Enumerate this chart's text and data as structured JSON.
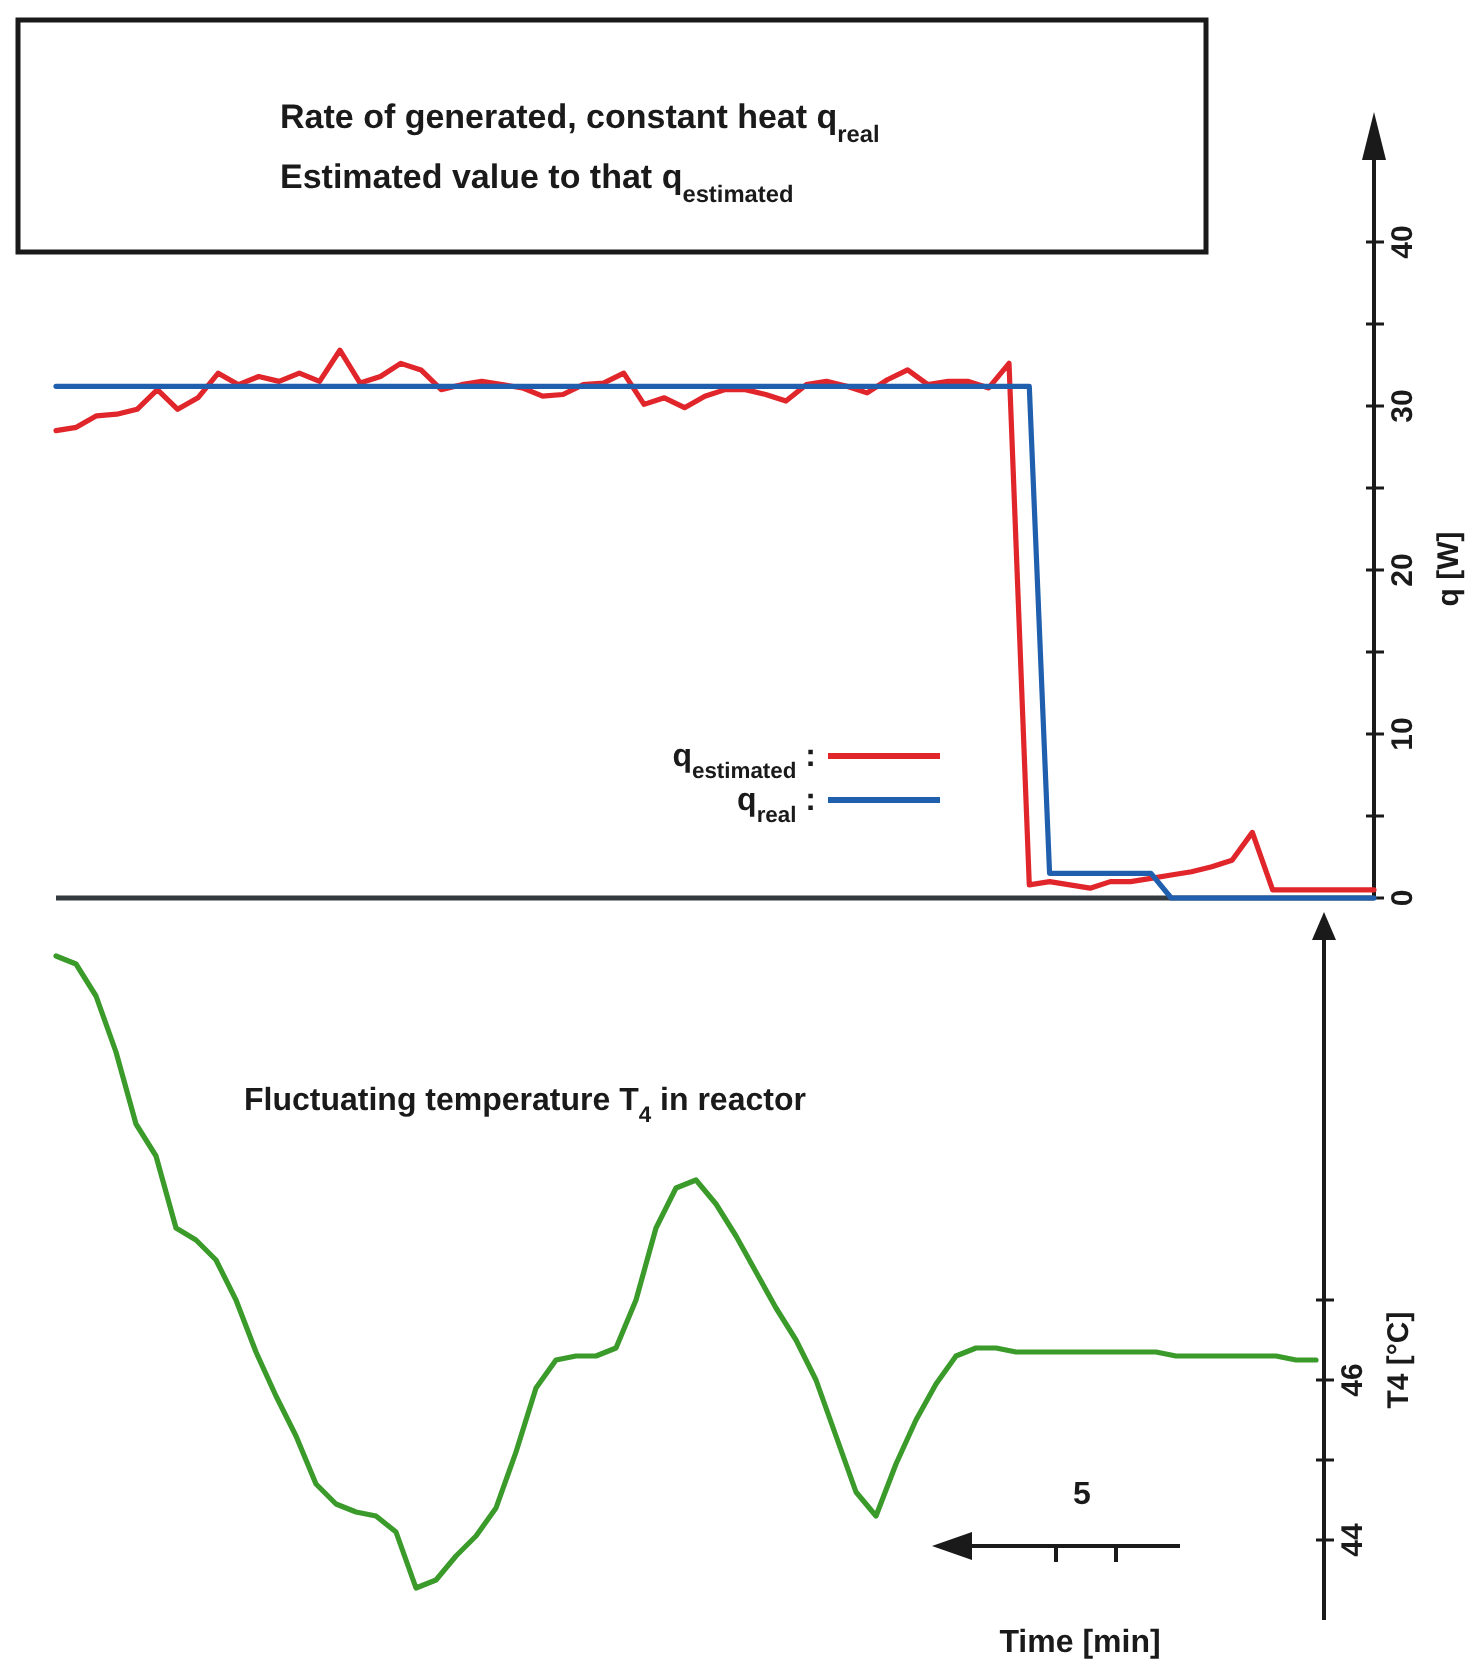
{
  "chart_data": [
    {
      "type": "line",
      "annotations": [
        "Rate of generated, constant heat q$_{real}$",
        "Estimated value to that q$_{estimated}$"
      ],
      "ylabel": "q [W]",
      "categories": [
        null,
        null,
        null,
        null,
        null,
        null,
        null,
        null,
        null,
        null,
        null,
        null,
        null,
        null,
        null,
        null,
        null,
        null,
        null,
        null,
        null,
        null,
        null,
        null,
        null,
        null,
        null,
        null,
        null,
        null,
        null,
        null,
        null,
        null,
        null,
        null,
        null,
        null,
        null,
        null,
        null,
        null,
        null,
        null,
        null,
        null,
        null,
        null,
        null,
        null,
        null,
        null,
        null,
        null,
        null,
        null,
        null,
        null,
        null,
        null,
        null,
        null,
        null,
        null,
        null,
        null
      ],
      "series": [
        {
          "name": "q$_{estimated}$ :",
          "color": "#e0262b",
          "values": [
            28.5,
            28.7,
            29.4,
            29.5,
            29.8,
            31,
            29.8,
            30.5,
            32,
            31.3,
            31.8,
            31.5,
            32,
            31.5,
            33.4,
            31.4,
            31.8,
            32.6,
            32.2,
            31,
            31.3,
            31.5,
            31.3,
            31.1,
            30.6,
            30.7,
            31.3,
            31.4,
            32,
            30.1,
            30.5,
            29.9,
            30.6,
            31,
            31,
            30.7,
            30.3,
            31.3,
            31.5,
            31.2,
            30.8,
            31.6,
            32.2,
            31.3,
            31.5,
            31.5,
            31.1,
            32.6,
            0.8,
            1.0,
            0.8,
            0.6,
            1.0,
            1.0,
            1.2,
            1.4,
            1.6,
            1.9,
            2.3,
            4.0,
            0.5,
            0.5,
            0.5,
            0.5,
            0.5,
            0.5
          ]
        },
        {
          "name": "q$_{real}$ :",
          "color": "#1f5fae",
          "values": [
            31.2,
            31.2,
            31.2,
            31.2,
            31.2,
            31.2,
            31.2,
            31.2,
            31.2,
            31.2,
            31.2,
            31.2,
            31.2,
            31.2,
            31.2,
            31.2,
            31.2,
            31.2,
            31.2,
            31.2,
            31.2,
            31.2,
            31.2,
            31.2,
            31.2,
            31.2,
            31.2,
            31.2,
            31.2,
            31.2,
            31.2,
            31.2,
            31.2,
            31.2,
            31.2,
            31.2,
            31.2,
            31.2,
            31.2,
            31.2,
            31.2,
            31.2,
            31.2,
            31.2,
            31.2,
            31.2,
            31.2,
            31.2,
            31.2,
            1.5,
            1.5,
            1.5,
            1.5,
            1.5,
            1.5,
            0,
            0,
            0,
            0,
            0,
            0,
            0,
            0,
            0,
            0,
            0
          ]
        }
      ],
      "ylim": [
        0,
        45
      ],
      "yticks": [
        0,
        {
          "value": 5,
          "label": null
        },
        10,
        {
          "value": 15,
          "label": null
        },
        20,
        {
          "value": 25,
          "label": null
        },
        30,
        {
          "value": 35,
          "label": null
        },
        40
      ],
      "tick_labels": "y",
      "legend": "bottom"
    },
    {
      "type": "line",
      "title": "Fluctuating temperature T$_{4}$ in reactor",
      "annotations": [
        "5"
      ],
      "xlabel": "Time [min]",
      "ylabel": "T4 [°C]",
      "categories": [
        null,
        null,
        null,
        null,
        null,
        null,
        null,
        null,
        null,
        null,
        null,
        null,
        null,
        null,
        null,
        null,
        null,
        null,
        null,
        null,
        null,
        null,
        null,
        null,
        null,
        null,
        null,
        null,
        null,
        null,
        null,
        null,
        null,
        null,
        null,
        null,
        null,
        null,
        null,
        null,
        null,
        null,
        null,
        null,
        null,
        null,
        null,
        null,
        null,
        null,
        null,
        null,
        null,
        null,
        null,
        null,
        null,
        null,
        null,
        null,
        null,
        null,
        null,
        null
      ],
      "series": [
        {
          "color": "#3a9a2a",
          "values": [
            51.3,
            51.2,
            50.8,
            50.1,
            49.2,
            48.8,
            47.9,
            47.75,
            47.5,
            47.0,
            46.35,
            45.8,
            45.3,
            44.7,
            44.45,
            44.35,
            44.3,
            44.1,
            43.4,
            43.5,
            43.8,
            44.05,
            44.4,
            45.1,
            45.9,
            46.25,
            46.3,
            46.3,
            46.4,
            47.0,
            47.9,
            48.4,
            48.5,
            48.2,
            47.8,
            47.35,
            46.9,
            46.5,
            46.0,
            45.3,
            44.6,
            44.3,
            44.95,
            45.5,
            45.95,
            46.3,
            46.4,
            46.4,
            46.35,
            46.35,
            46.35,
            46.35,
            46.35,
            46.35,
            46.35,
            46.35,
            46.3,
            46.3,
            46.3,
            46.3,
            46.3,
            46.3,
            46.25,
            46.25
          ]
        }
      ],
      "ylim": [
        43,
        51.5
      ],
      "yticks": [
        44,
        {
          "value": 45,
          "label": null
        },
        46,
        {
          "value": 47,
          "label": null
        }
      ],
      "tick_labels": "y",
      "legend": false
    }
  ]
}
